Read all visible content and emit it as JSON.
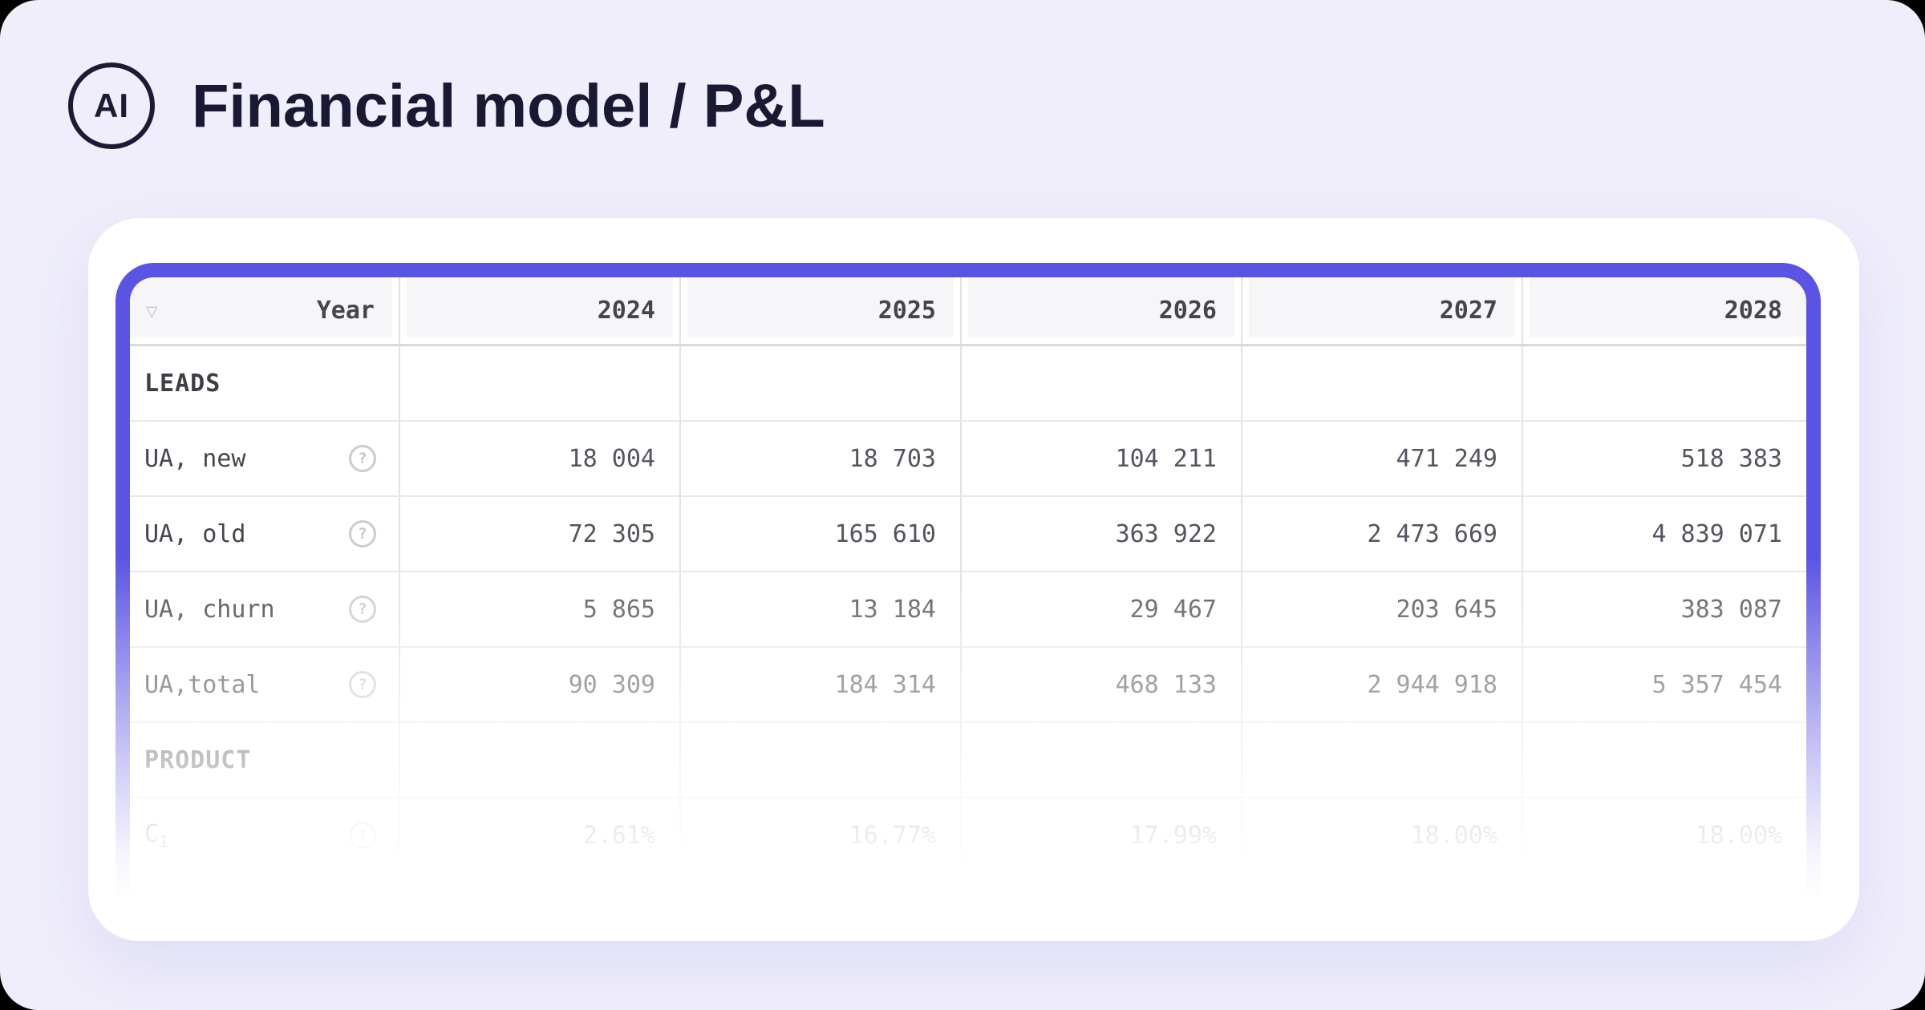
{
  "header": {
    "logo_text": "AI",
    "title": "Financial model / P&L"
  },
  "table": {
    "columns": [
      "Year",
      "2024",
      "2025",
      "2026",
      "2027",
      "2028"
    ],
    "sort_icon": "▽",
    "help_icon": "?",
    "rows": [
      {
        "type": "section",
        "label": "LEADS"
      },
      {
        "type": "data",
        "label": "UA, new",
        "has_help": true,
        "values": [
          "18 004",
          "18 703",
          "104 211",
          "471 249",
          "518 383"
        ]
      },
      {
        "type": "data",
        "label": "UA, old",
        "has_help": true,
        "values": [
          "72 305",
          "165 610",
          "363 922",
          "2 473 669",
          "4 839 071"
        ]
      },
      {
        "type": "data",
        "label": "UA, churn",
        "has_help": true,
        "values": [
          "5 865",
          "13 184",
          "29 467",
          "203 645",
          "383 087"
        ]
      },
      {
        "type": "data",
        "label": "UA,total",
        "has_help": true,
        "values": [
          "90 309",
          "184 314",
          "468 133",
          "2 944 918",
          "5 357 454"
        ]
      },
      {
        "type": "section",
        "label": "PRODUCT"
      },
      {
        "type": "data",
        "label": "C",
        "label_sub": "1",
        "has_help": true,
        "values": [
          "2.61%",
          "16.77%",
          "17.99%",
          "18.00%",
          "18.00%"
        ]
      }
    ],
    "colors": {
      "accent_purple": "#5A53E3",
      "page_background": "#EFEEFA",
      "card_background": "#FFFFFF",
      "header_cell_background": "#F6F6F9",
      "gridline": "#E1E1E7",
      "dark_text": "#45454D",
      "value_text": "#55555E",
      "title_text": "#191934"
    }
  }
}
